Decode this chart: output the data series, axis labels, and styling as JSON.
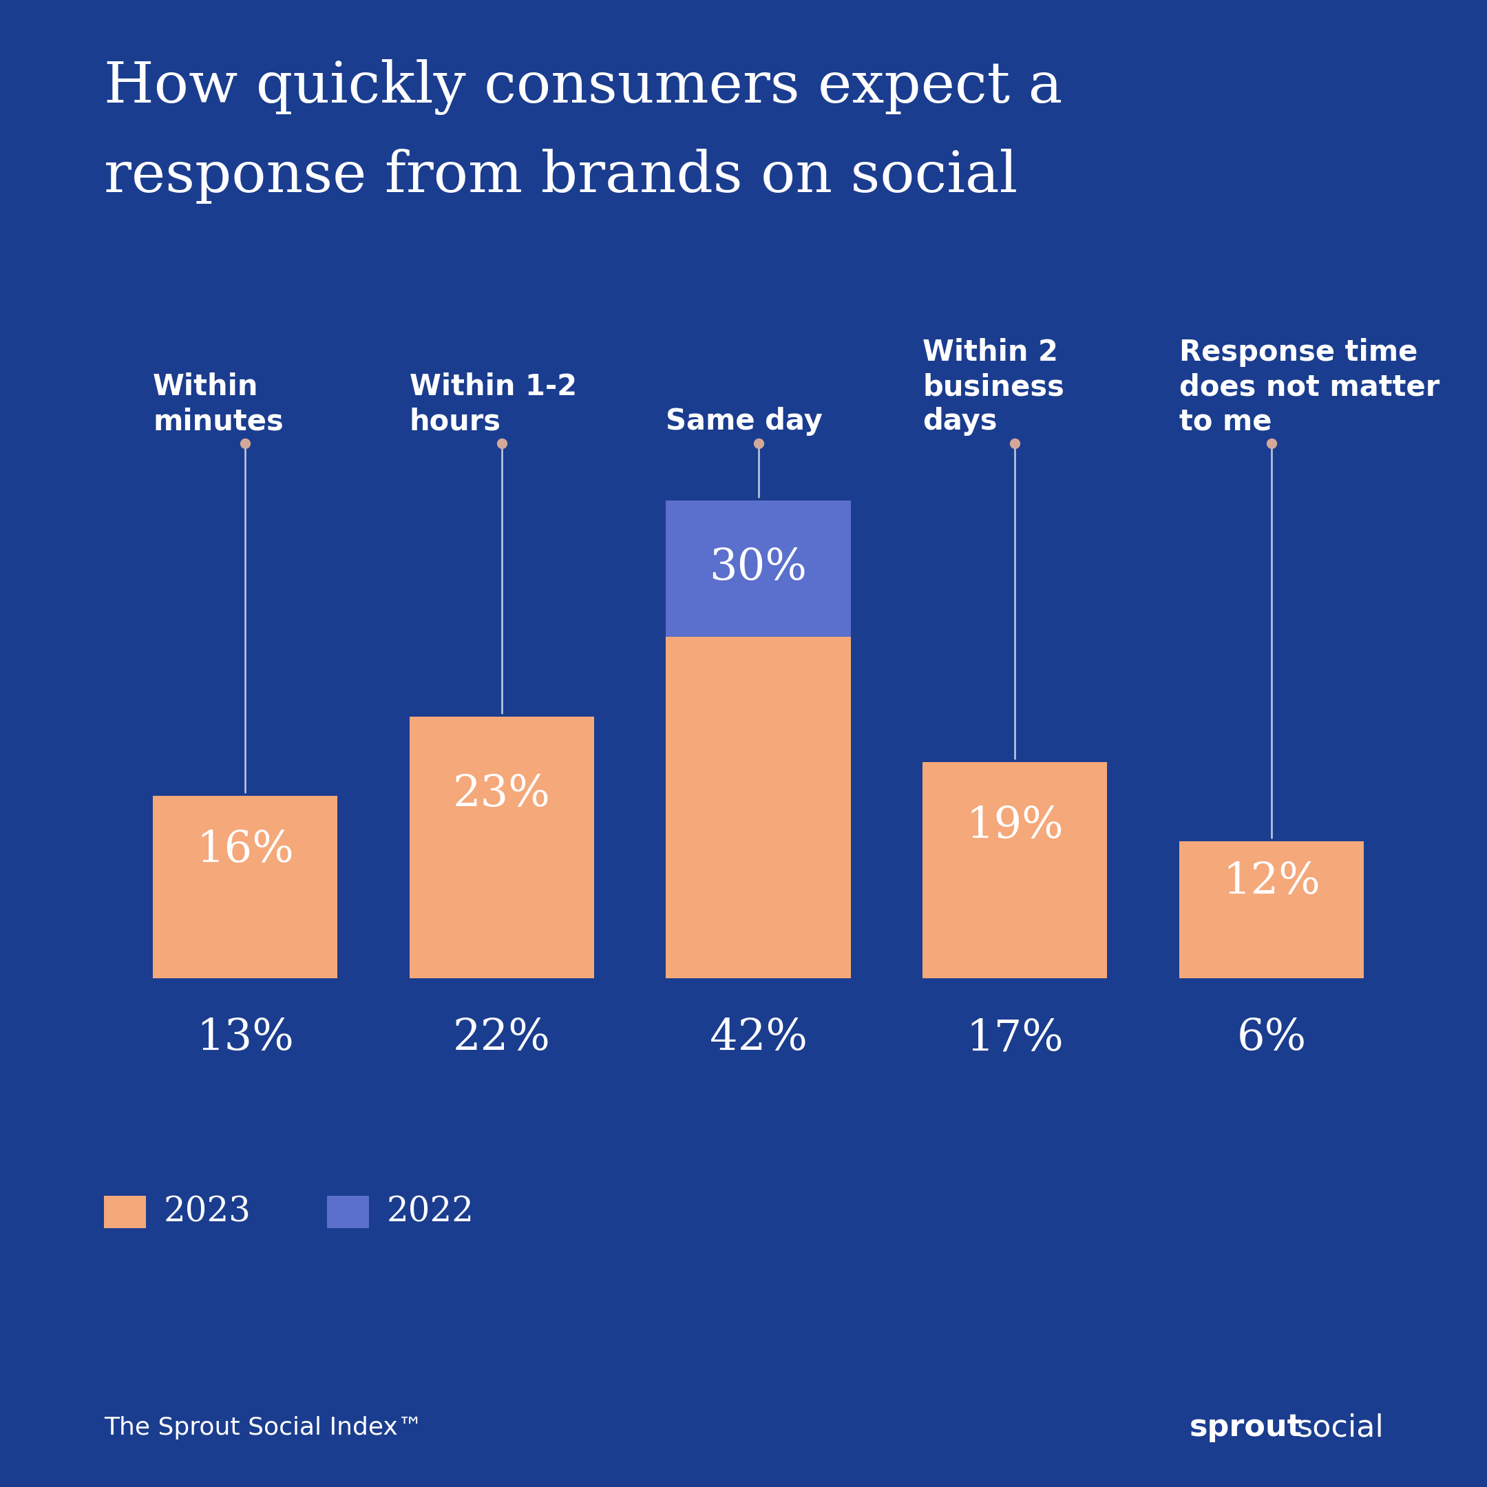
{
  "title_line1": "How quickly consumers expect a",
  "title_line2": "response from brands on social",
  "categories": [
    "Within\nminutes",
    "Within 1-2\nhours",
    "Same day",
    "Within 2\nbusiness\ndays",
    "Response time\ndoes not matter\nto me"
  ],
  "values_2023": [
    16,
    23,
    30,
    19,
    12
  ],
  "values_2022": [
    13,
    22,
    42,
    17,
    6
  ],
  "color_2023": "#F5A87A",
  "color_2022": "#5B6FCC",
  "bg_color": "#1B3D8F",
  "text_color": "#FFFFFF",
  "footer_left": "The Sprout Social Index™",
  "footer_right_bold": "sprout",
  "footer_right_normal": "social"
}
